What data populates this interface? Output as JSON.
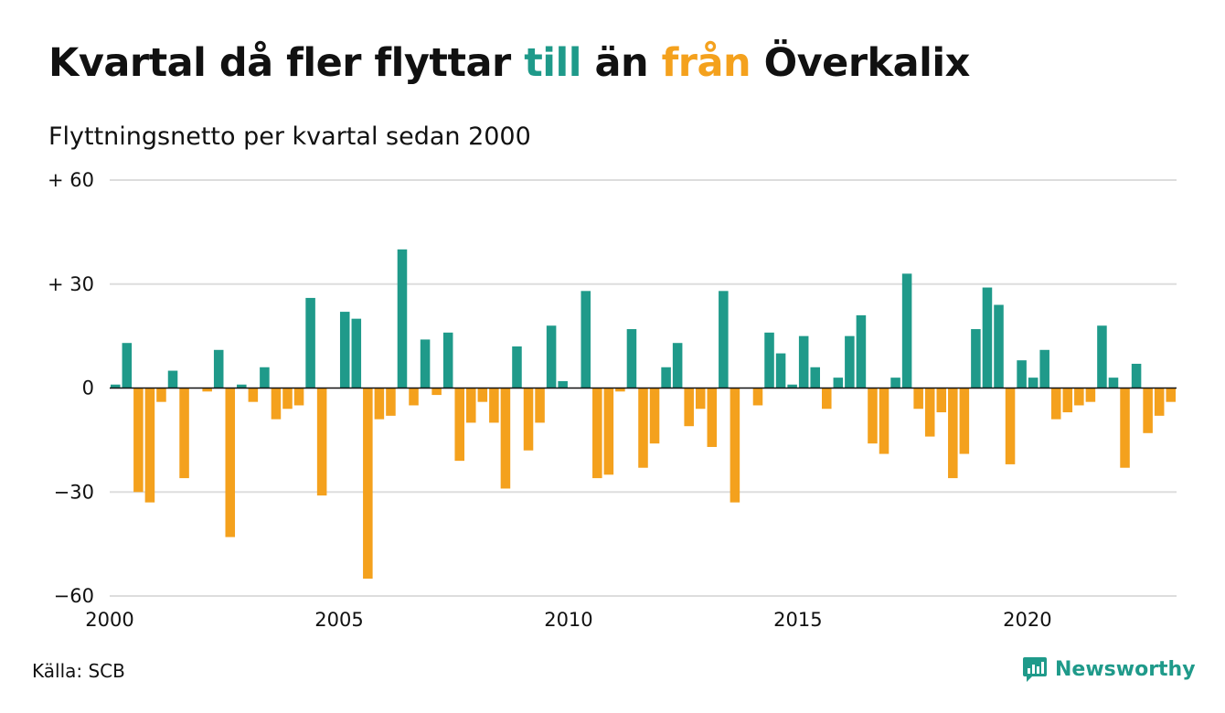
{
  "title": {
    "part1": "Kvartal då fler flyttar ",
    "till": "till",
    "part2": " än ",
    "fran": "från",
    "part3": " Överkalix"
  },
  "subtitle": "Flyttningsnetto per kvartal sedan 2000",
  "source": "Källa: SCB",
  "brand": "Newsworthy",
  "colors": {
    "positive": "#1f9a8a",
    "negative": "#f4a11d",
    "grid": "#dddddd",
    "zero": "#111111"
  },
  "chart_data": {
    "type": "bar",
    "x_start": 2000,
    "x_step": 0.25,
    "xlim": [
      2000,
      2023.25
    ],
    "ylim": [
      -60,
      60
    ],
    "yticks": [
      60,
      30,
      0,
      -30,
      -60
    ],
    "ytick_labels": [
      "+ 60",
      "+ 30",
      "0",
      "−30",
      "−60"
    ],
    "xticks": [
      2000,
      2005,
      2010,
      2015,
      2020
    ],
    "xtick_labels": [
      "2000",
      "2005",
      "2010",
      "2015",
      "2020"
    ],
    "grid": true,
    "values": [
      1,
      13,
      -30,
      -33,
      -4,
      5,
      -26,
      0,
      -1,
      11,
      -43,
      1,
      -4,
      6,
      -9,
      -6,
      -5,
      26,
      -31,
      0,
      22,
      20,
      -55,
      -9,
      -8,
      40,
      -5,
      14,
      -2,
      16,
      -21,
      -10,
      -4,
      -10,
      -29,
      12,
      -18,
      -10,
      18,
      2,
      0,
      28,
      -26,
      -25,
      -1,
      17,
      -23,
      -16,
      6,
      13,
      -11,
      -6,
      -17,
      28,
      -33,
      0,
      -5,
      16,
      10,
      1,
      15,
      6,
      -6,
      3,
      15,
      21,
      -16,
      -19,
      3,
      33,
      -6,
      -14,
      -7,
      -26,
      -19,
      17,
      29,
      24,
      -22,
      8,
      3,
      11,
      -9,
      -7,
      -5,
      -4,
      18,
      3,
      -23,
      7,
      -13,
      -8,
      -4
    ]
  }
}
